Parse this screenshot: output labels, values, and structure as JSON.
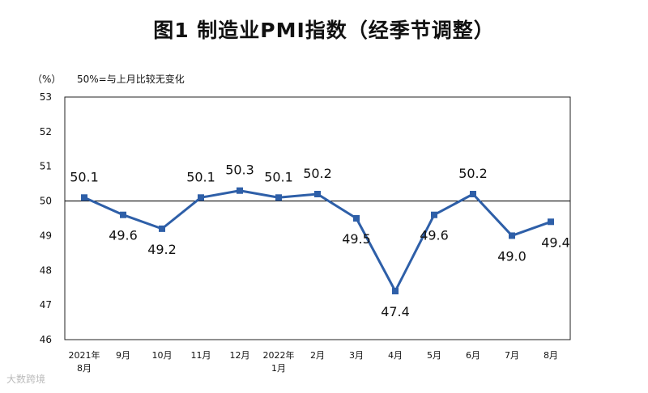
{
  "header": {
    "title": "图1 制造业PMI指数（经季节调整）",
    "unit": "（%）",
    "note": "50%=与上月比较无变化"
  },
  "watermark": "大数跨境",
  "chart_data": {
    "type": "line",
    "title": "图1 制造业PMI指数（经季节调整）",
    "ylabel": "（%）",
    "ylim": [
      46,
      53
    ],
    "yticks": [
      46,
      47,
      48,
      49,
      50,
      51,
      52,
      53
    ],
    "reference_line": 50,
    "categories": [
      [
        "2021年",
        "8月"
      ],
      [
        "9月"
      ],
      [
        "10月"
      ],
      [
        "11月"
      ],
      [
        "12月"
      ],
      [
        "2022年",
        "1月"
      ],
      [
        "2月"
      ],
      [
        "3月"
      ],
      [
        "4月"
      ],
      [
        "5月"
      ],
      [
        "6月"
      ],
      [
        "7月"
      ],
      [
        "8月"
      ]
    ],
    "values": [
      50.1,
      49.6,
      49.2,
      50.1,
      50.3,
      50.1,
      50.2,
      49.5,
      47.4,
      49.6,
      50.2,
      49.0,
      49.4
    ],
    "data_labels": [
      "50.1",
      "49.6",
      "49.2",
      "50.1",
      "50.3",
      "50.1",
      "50.2",
      "49.5",
      "47.4",
      "49.6",
      "50.2",
      "49.0",
      "49.4"
    ],
    "label_position": [
      "above",
      "below",
      "below",
      "above",
      "above",
      "above",
      "above",
      "below",
      "below",
      "below",
      "above",
      "below",
      "below"
    ],
    "line_color": "#2e5fa8",
    "grid": false
  }
}
